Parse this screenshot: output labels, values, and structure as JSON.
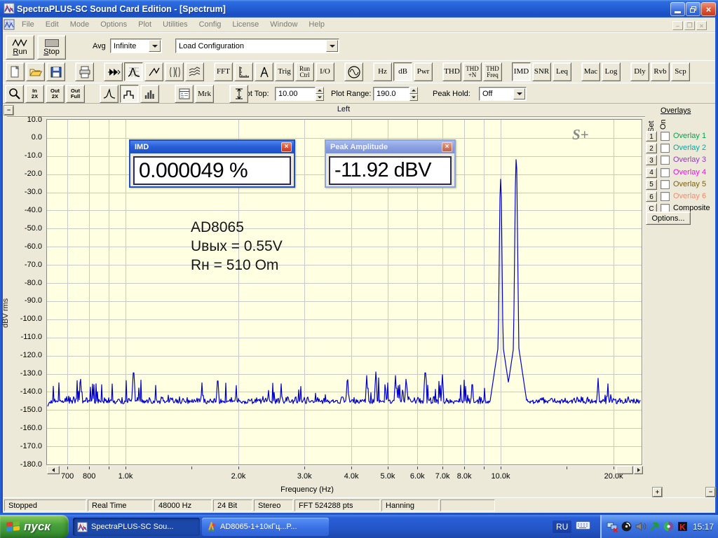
{
  "window": {
    "title": "SpectraPLUS-SC Sound Card Edition - [Spectrum]"
  },
  "menu": {
    "items": [
      "File",
      "Edit",
      "Mode",
      "Options",
      "Plot",
      "Utilities",
      "Config",
      "License",
      "Window",
      "Help"
    ]
  },
  "toolbar1": {
    "run_label": "Run",
    "stop_label": "Stop",
    "avg_label": "Avg",
    "avg_value": "Infinite",
    "config_value": "Load Configuration"
  },
  "toolbar2": {
    "buttons": [
      {
        "name": "new-file",
        "type": "icon",
        "icon": "new"
      },
      {
        "name": "open-file",
        "type": "icon",
        "icon": "open"
      },
      {
        "name": "save-file",
        "type": "icon",
        "icon": "save"
      },
      {
        "name": "print",
        "type": "icon",
        "icon": "print",
        "gap": true
      },
      {
        "name": "fast-forward",
        "type": "icon",
        "icon": "ffwd",
        "gap": true
      },
      {
        "name": "spectrum-plot",
        "type": "icon",
        "icon": "spec",
        "pressed": true
      },
      {
        "name": "time-series-plot",
        "type": "icon",
        "icon": "wave"
      },
      {
        "name": "spectrogram-plot",
        "type": "icon",
        "icon": "sgram"
      },
      {
        "name": "surface-plot",
        "type": "icon",
        "icon": "surf"
      },
      {
        "name": "fft-settings",
        "type": "text",
        "label": "FFT",
        "gap": true
      },
      {
        "name": "scaling",
        "type": "icon",
        "icon": "ruler"
      },
      {
        "name": "calibration",
        "type": "icon",
        "icon": "caliper"
      },
      {
        "name": "trigger",
        "type": "text",
        "label": "Trig"
      },
      {
        "name": "run-control",
        "type": "text",
        "label": "Run\nCtrl"
      },
      {
        "name": "io-device",
        "type": "text",
        "label": "I/O"
      },
      {
        "name": "signal-generator",
        "type": "icon",
        "icon": "sine",
        "gap": true
      },
      {
        "name": "units-hz",
        "type": "text",
        "label": "Hz",
        "gap": true
      },
      {
        "name": "units-db",
        "type": "text",
        "label": "dB",
        "pressed": true
      },
      {
        "name": "units-power",
        "type": "text",
        "label": "Pwr"
      },
      {
        "name": "thd",
        "type": "text",
        "label": "THD",
        "gap": true
      },
      {
        "name": "thd-plus-n",
        "type": "text",
        "label": "THD\n+N"
      },
      {
        "name": "thd-freq",
        "type": "text",
        "label": "THD\nFreq"
      },
      {
        "name": "imd",
        "type": "text",
        "label": "IMD",
        "pressed": true,
        "gap": true
      },
      {
        "name": "snr",
        "type": "text",
        "label": "SNR"
      },
      {
        "name": "leq",
        "type": "text",
        "label": "Leq"
      },
      {
        "name": "macro",
        "type": "text",
        "label": "Mac",
        "gap": true
      },
      {
        "name": "logging",
        "type": "text",
        "label": "Log"
      },
      {
        "name": "delay",
        "type": "text",
        "label": "Dly",
        "gap": true
      },
      {
        "name": "reverb",
        "type": "text",
        "label": "Rvb"
      },
      {
        "name": "scope",
        "type": "text",
        "label": "Scp"
      }
    ]
  },
  "toolbar3": {
    "zoom_buttons": [
      {
        "name": "zoom-tool",
        "type": "icon",
        "icon": "mag",
        "x": 3
      },
      {
        "name": "zoom-in-2x",
        "type": "text",
        "label": "In\n2X",
        "x": 32
      },
      {
        "name": "zoom-out-2x",
        "type": "text",
        "label": "Out\n2X",
        "x": 61
      },
      {
        "name": "zoom-out-full",
        "type": "text",
        "label": "Out\nFull",
        "x": 90
      },
      {
        "name": "plot-style-peak",
        "type": "icon",
        "icon": "peak",
        "x": 138
      },
      {
        "name": "plot-style-step",
        "type": "icon",
        "icon": "step",
        "x": 167,
        "pressed": true
      },
      {
        "name": "plot-style-bars",
        "type": "icon",
        "icon": "bars",
        "x": 196
      },
      {
        "name": "display-options",
        "type": "icon",
        "icon": "list",
        "x": 245
      },
      {
        "name": "markers",
        "type": "text-serif",
        "label": "Mrk",
        "x": 274
      },
      {
        "name": "vertical-range",
        "type": "icon",
        "icon": "vrange",
        "x": 323
      }
    ],
    "plot_top_label": "Plot Top:",
    "plot_top_value": "10.00",
    "plot_range_label": "Plot Range:",
    "plot_range_value": "190.0",
    "peak_hold_label": "Peak Hold:",
    "peak_hold_value": "Off"
  },
  "plot": {
    "channel_label": "Left",
    "logo": "S+",
    "annotation_lines": [
      "AD8065",
      "Uвых = 0.55V",
      "Rн = 510 Om"
    ]
  },
  "meters": {
    "imd": {
      "title": "IMD",
      "value": "0.000049 %"
    },
    "peak": {
      "title": "Peak Amplitude",
      "value": "-11.92 dBV"
    }
  },
  "overlays": {
    "heading": "Overlays",
    "col_set": "Set",
    "col_on": "On",
    "rows": [
      {
        "btn": "1",
        "label": "Overlay 1",
        "color": "#00a550"
      },
      {
        "btn": "2",
        "label": "Overlay 2",
        "color": "#00aaaa"
      },
      {
        "btn": "3",
        "label": "Overlay 3",
        "color": "#9933cc"
      },
      {
        "btn": "4",
        "label": "Overlay 4",
        "color": "#ff00ff"
      },
      {
        "btn": "5",
        "label": "Overlay 5",
        "color": "#806000"
      },
      {
        "btn": "6",
        "label": "Overlay 6",
        "color": "#ff8866"
      },
      {
        "btn": "C",
        "label": "Composite",
        "color": "#000000"
      }
    ],
    "options_label": "Options..."
  },
  "chart_data": {
    "type": "line",
    "title": "Left",
    "xlabel": "Frequency (Hz)",
    "ylabel": "dBV rms",
    "x_scale": "log",
    "x_range_hz": [
      620,
      23500
    ],
    "y_range_db": [
      10,
      -180
    ],
    "y_tick_step_db": 10,
    "y_tick_labels": [
      "10.0",
      "0.0",
      "-10.0",
      "-20.0",
      "-30.0",
      "-40.0",
      "-50.0",
      "-60.0",
      "-70.0",
      "-80.0",
      "-90.0",
      "-100.0",
      "-110.0",
      "-120.0",
      "-130.0",
      "-140.0",
      "-150.0",
      "-160.0",
      "-170.0",
      "-180.0"
    ],
    "x_ticks": [
      {
        "f": 700,
        "label": "700",
        "grid": true
      },
      {
        "f": 800,
        "label": "800",
        "grid": true
      },
      {
        "f": 900,
        "label": "",
        "grid": true
      },
      {
        "f": 1000,
        "label": "1.0k",
        "grid": true
      },
      {
        "f": 1500,
        "label": "",
        "grid": false
      },
      {
        "f": 2000,
        "label": "2.0k",
        "grid": true
      },
      {
        "f": 3000,
        "label": "3.0k",
        "grid": true
      },
      {
        "f": 4000,
        "label": "4.0k",
        "grid": true
      },
      {
        "f": 5000,
        "label": "5.0k",
        "grid": true
      },
      {
        "f": 6000,
        "label": "6.0k",
        "grid": true
      },
      {
        "f": 7000,
        "label": "7.0k",
        "grid": true
      },
      {
        "f": 8000,
        "label": "8.0k",
        "grid": true
      },
      {
        "f": 9000,
        "label": "",
        "grid": true
      },
      {
        "f": 10000,
        "label": "10.0k",
        "grid": true
      },
      {
        "f": 15000,
        "label": "",
        "grid": false
      },
      {
        "f": 20000,
        "label": "20.0k",
        "grid": true
      }
    ],
    "trace_color": "#0000cd",
    "grid_color": "#c9c9c9",
    "plot_bg": "#ffffe1",
    "noise_floor_db": -146.5,
    "noise_jitter_db": 3.2,
    "busy_bands": [
      {
        "f0": 640,
        "f1": 1150,
        "p": 0.1,
        "amp": 10
      },
      {
        "f0": 1150,
        "f1": 3900,
        "p": 0.05,
        "amp": 8
      },
      {
        "f0": 3900,
        "f1": 7300,
        "p": 0.14,
        "amp": 11
      },
      {
        "f0": 7300,
        "f1": 9200,
        "p": 0.05,
        "amp": 7
      },
      {
        "f0": 12500,
        "f1": 23000,
        "p": 0.035,
        "amp": 6
      }
    ],
    "spikes": [
      {
        "f": 760,
        "db": -133
      },
      {
        "f": 1050,
        "db": -129.5
      },
      {
        "f": 1600,
        "db": -135
      },
      {
        "f": 1760,
        "db": -134
      },
      {
        "f": 2600,
        "db": -135.5
      },
      {
        "f": 3900,
        "db": -134
      },
      {
        "f": 4400,
        "db": -131
      },
      {
        "f": 4650,
        "db": -129
      },
      {
        "f": 5250,
        "db": -131
      },
      {
        "f": 5600,
        "db": -133
      },
      {
        "f": 6300,
        "db": -129.5
      },
      {
        "f": 7000,
        "db": -130.5
      },
      {
        "f": 8400,
        "db": -136
      },
      {
        "f": 18200,
        "db": -132.5
      },
      {
        "f": 19300,
        "db": -135.5
      }
    ],
    "tones": [
      {
        "freq_hz": 10000,
        "level_db": -22.8
      },
      {
        "freq_hz": 11000,
        "level_db": -11.92
      }
    ],
    "seed": 20241017
  },
  "statusbar": {
    "cells": [
      "Stopped",
      "Real Time",
      "48000 Hz",
      "24 Bit",
      "Stereo",
      "FFT 524288 pts",
      "Hanning",
      ""
    ]
  },
  "taskbar": {
    "start_label": "пуск",
    "tasks": [
      {
        "label": "SpectraPLUS-SC Sou...",
        "active": true,
        "icon": "app"
      },
      {
        "label": "AD8065-1+10кГц...P...",
        "active": false,
        "icon": "img"
      }
    ],
    "lang": "RU",
    "clock": "15:17",
    "tray_icons": [
      "network-offline-icon",
      "privacy-guard-icon",
      "volume-icon",
      "download-manager-icon",
      "firewall-icon",
      "antivirus-icon"
    ]
  }
}
